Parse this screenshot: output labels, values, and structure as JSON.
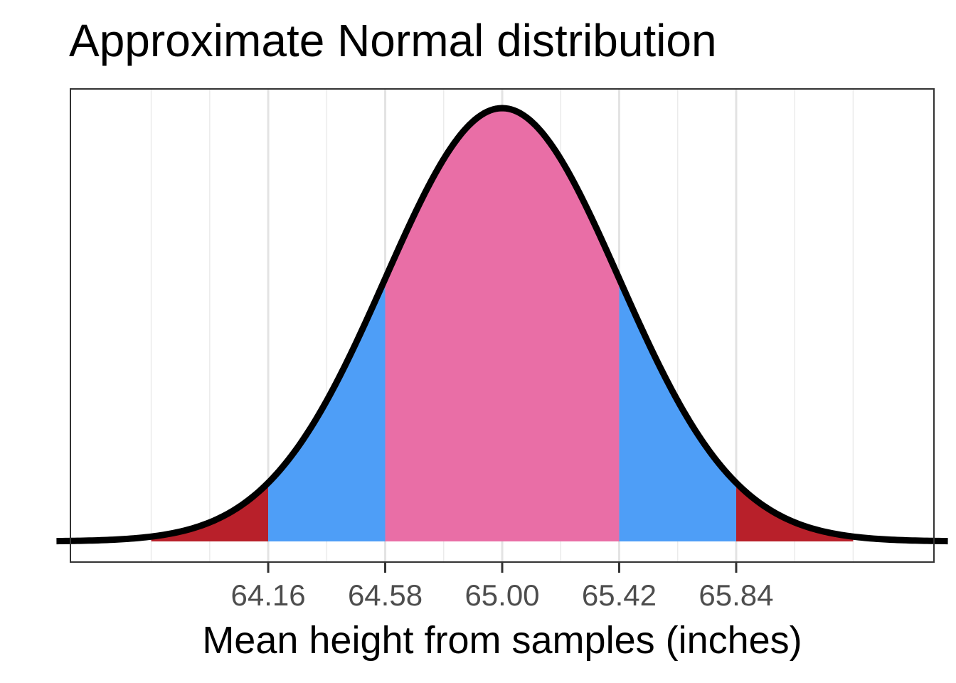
{
  "chart_data": {
    "type": "area",
    "title": "Approximate Normal distribution",
    "xlabel": "Mean height from samples (inches)",
    "ylabel": "",
    "distribution": {
      "name": "normal",
      "mean": 65.0,
      "sd": 0.42
    },
    "xlim": [
      63.45,
      66.55
    ],
    "tick_values": [
      64.16,
      64.58,
      65.0,
      65.42,
      65.84
    ],
    "tick_labels": [
      "64.16",
      "64.58",
      "65.00",
      "65.42",
      "65.84"
    ],
    "major_gridlines": [
      64.16,
      64.58,
      65.0,
      65.42,
      65.84
    ],
    "minor_gridlines": [
      63.74,
      63.95,
      64.37,
      64.79,
      65.21,
      65.63,
      66.05,
      66.26
    ],
    "curve_range": [
      63.4,
      66.6
    ],
    "shaded_regions": [
      {
        "name": "lower-tail",
        "from": 63.74,
        "to": 64.16,
        "color": "#B8202A"
      },
      {
        "name": "lower-band",
        "from": 64.16,
        "to": 64.58,
        "color": "#4E9EF7"
      },
      {
        "name": "center-band",
        "from": 64.58,
        "to": 65.42,
        "color": "#E96EA6"
      },
      {
        "name": "upper-band",
        "from": 65.42,
        "to": 65.84,
        "color": "#4E9EF7"
      },
      {
        "name": "upper-tail",
        "from": 65.84,
        "to": 66.26,
        "color": "#B8202A"
      }
    ],
    "curve_color": "#000000",
    "grid": true,
    "legend": "none"
  }
}
